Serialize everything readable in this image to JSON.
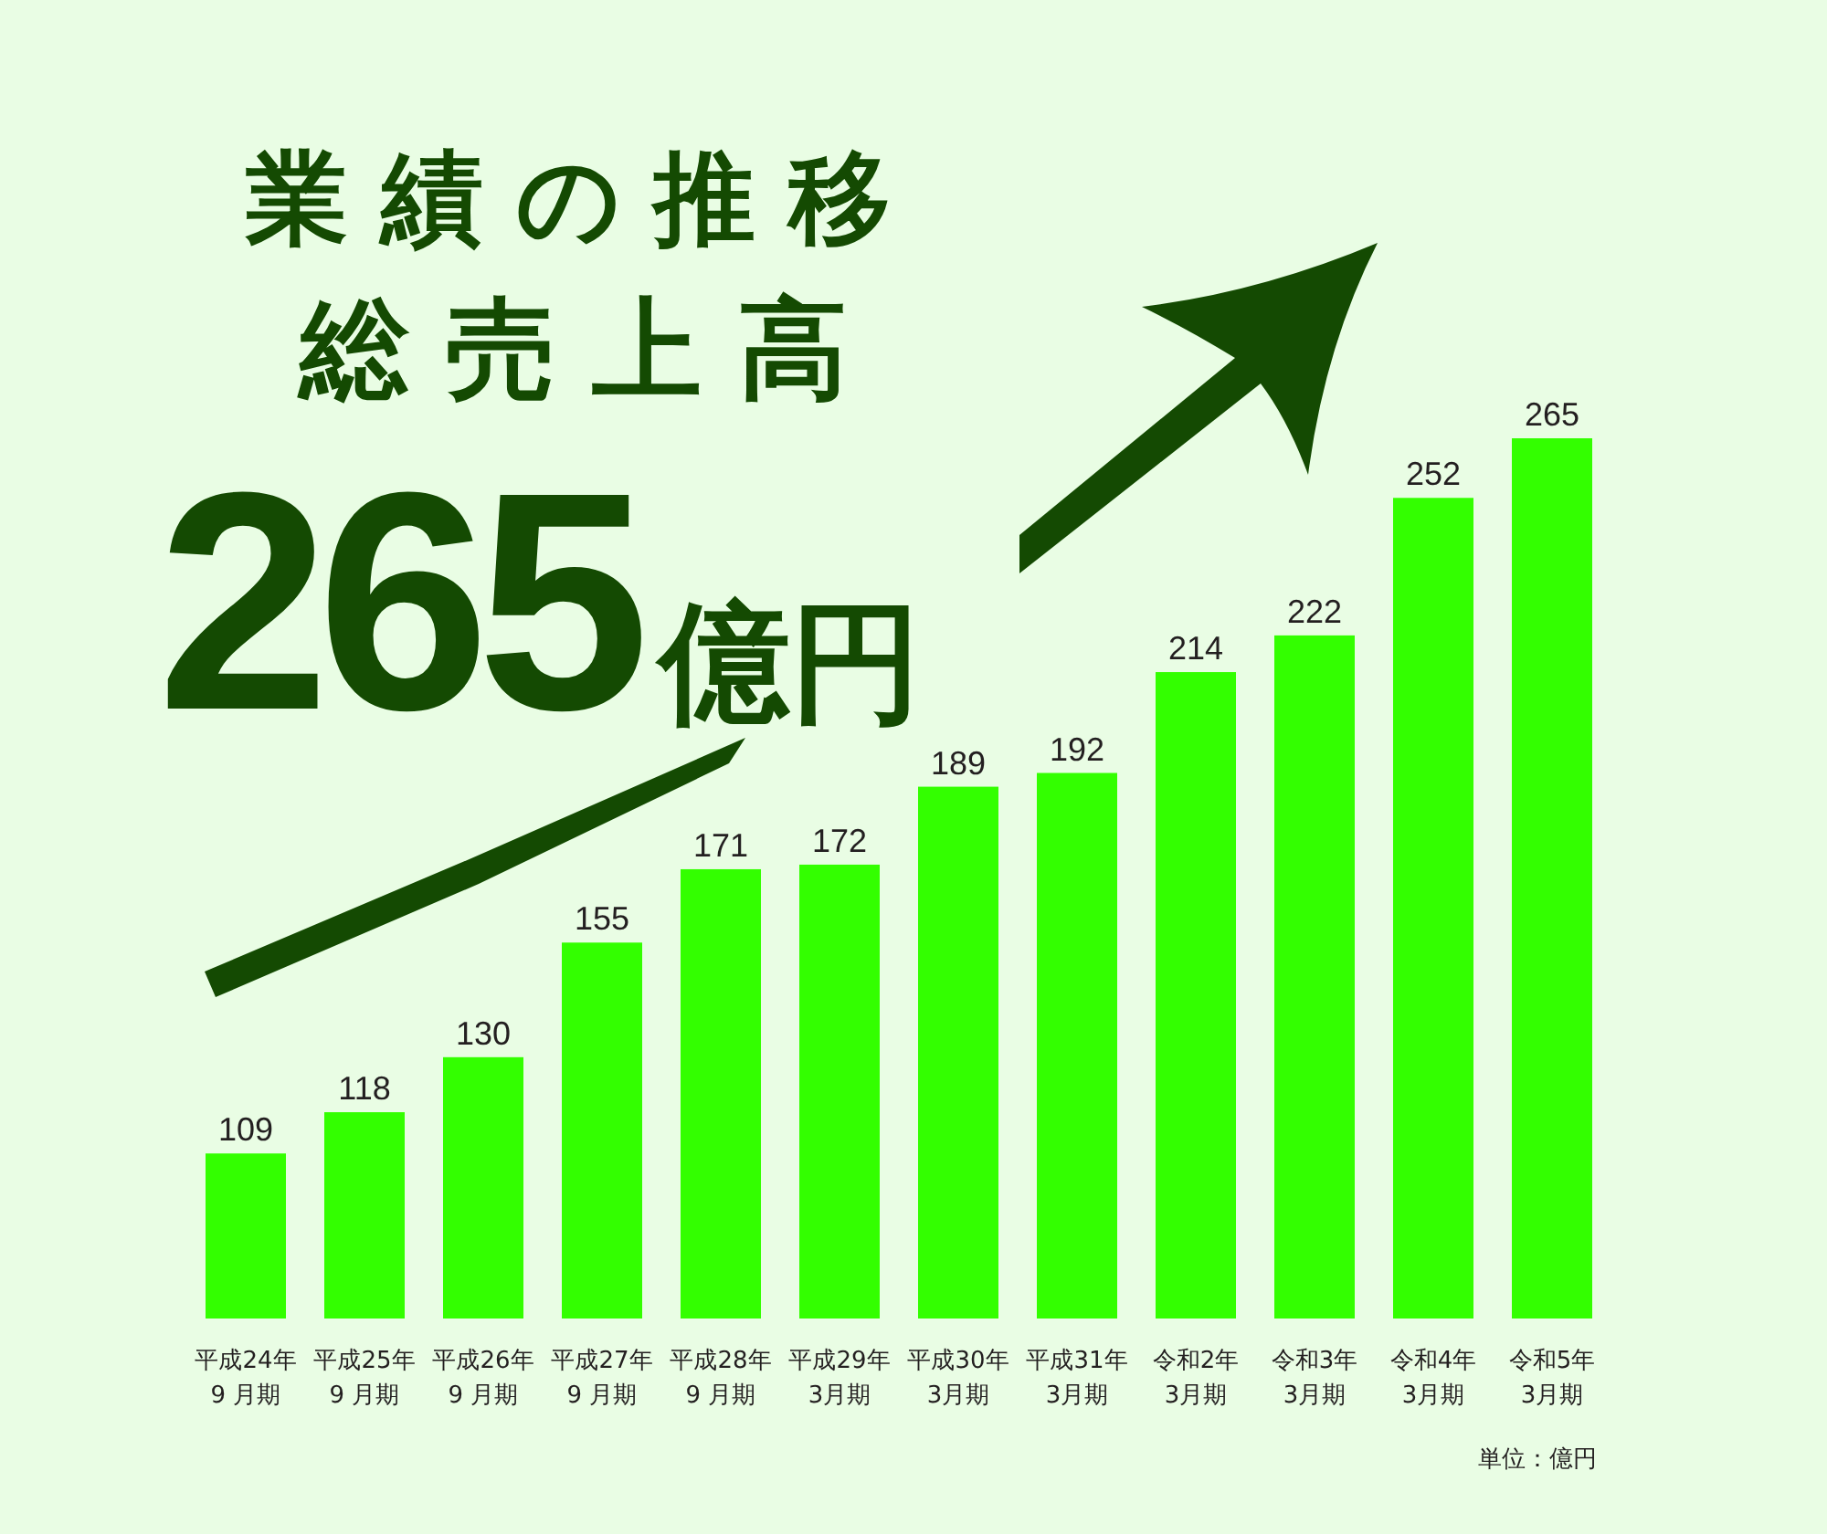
{
  "chart_data": {
    "type": "bar",
    "title": "業績の推移",
    "subtitle": "総売上高",
    "categories": [
      "平成24年\n9 月期",
      "平成25年\n9 月期",
      "平成26年\n9 月期",
      "平成27年\n9 月期",
      "平成28年\n9 月期",
      "平成29年\n3月期",
      "平成30年\n3月期",
      "平成31年\n3月期",
      "令和2年\n3月期",
      "令和3年\n3月期",
      "令和4年\n3月期",
      "令和5年\n3月期"
    ],
    "values": [
      109,
      118,
      130,
      155,
      171,
      172,
      189,
      192,
      214,
      222,
      252,
      265
    ],
    "color": "#33ff00",
    "ylim": [
      73,
      265
    ],
    "data_labels": true,
    "tick_labels": "x",
    "annotations": [
      "265億円",
      "単位：億円"
    ]
  }
}
